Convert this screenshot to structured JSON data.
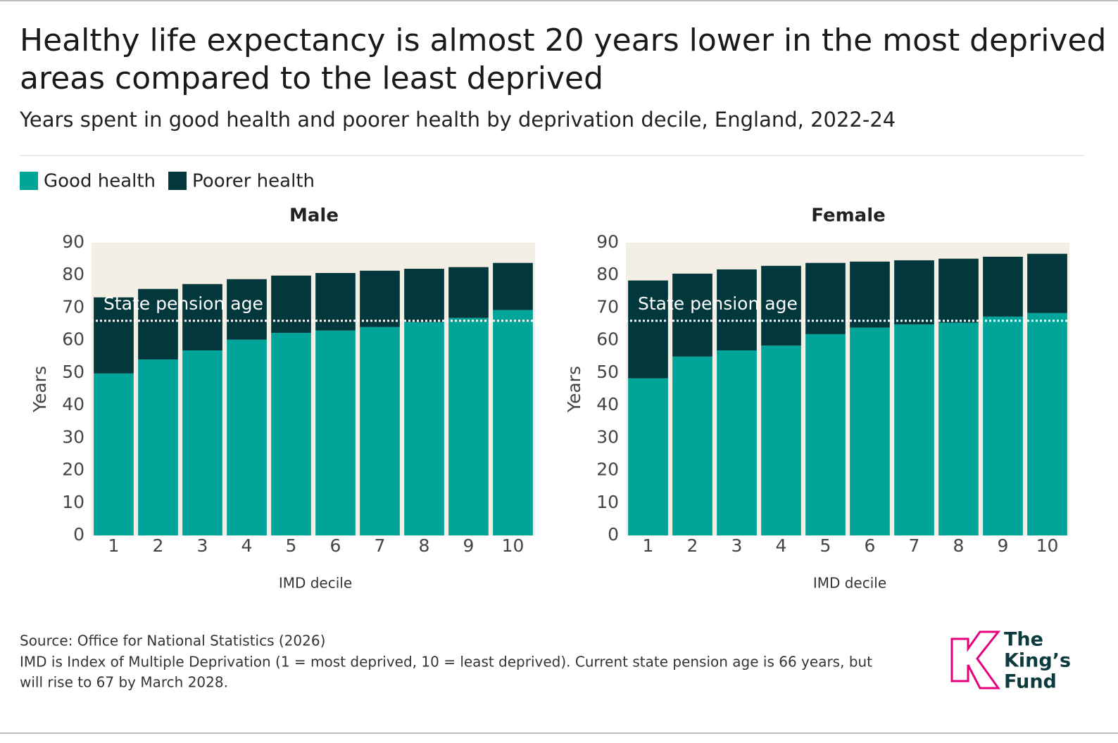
{
  "header": {
    "title_lines": [
      "Healthy life expectancy is almost 20 years lower in the most deprived",
      "areas compared to the least deprived"
    ],
    "subtitle": "Years spent in good health and poorer health by deprivation decile, England, 2022-24"
  },
  "legend": [
    {
      "name": "Good health",
      "color": "#00a499"
    },
    {
      "name": "Poorer health",
      "color": "#02373c"
    }
  ],
  "chart_data": [
    {
      "type": "stacked-bar",
      "title": "Male",
      "x_label": "IMD decile",
      "y_label": "Years",
      "categories": [
        "1",
        "2",
        "3",
        "4",
        "5",
        "6",
        "7",
        "8",
        "9",
        "10"
      ],
      "series": [
        {
          "values": [
            49.8,
            54.1,
            56.9,
            60.2,
            62.3,
            63.0,
            64.1,
            65.6,
            66.9,
            69.3
          ]
        },
        {
          "values": [
            23.4,
            21.7,
            20.4,
            18.6,
            17.6,
            17.7,
            17.3,
            16.4,
            15.6,
            14.5
          ]
        }
      ],
      "ylim": [
        0,
        90
      ],
      "yticks": [
        0,
        10,
        20,
        30,
        40,
        50,
        60,
        70,
        80,
        90
      ],
      "annotations": [
        {
          "text": "State pension age",
          "y": 66
        }
      ]
    },
    {
      "type": "stacked-bar",
      "title": "Female",
      "x_label": "IMD decile",
      "y_label": "Years",
      "categories": [
        "1",
        "2",
        "3",
        "4",
        "5",
        "6",
        "7",
        "8",
        "9",
        "10"
      ],
      "series": [
        {
          "values": [
            48.3,
            55.0,
            56.9,
            58.4,
            61.9,
            63.9,
            64.9,
            65.4,
            67.3,
            68.4
          ]
        },
        {
          "values": [
            30.1,
            25.5,
            24.9,
            24.5,
            21.9,
            20.3,
            19.7,
            19.7,
            18.4,
            18.2
          ]
        }
      ],
      "ylim": [
        0,
        90
      ],
      "yticks": [
        0,
        10,
        20,
        30,
        40,
        50,
        60,
        70,
        80,
        90
      ],
      "annotations": [
        {
          "text": "State pension age",
          "y": 66
        }
      ]
    }
  ],
  "footer": {
    "source": "Source: Office for National Statistics (2026)",
    "note_lines": [
      "IMD is Index of Multiple Deprivation (1 = most deprived, 10 = least deprived). Current state pension age is 66 years, but",
      "will rise to 67 by March 2028."
    ]
  },
  "logo": {
    "lines": [
      "The",
      "King’s",
      "Fund"
    ]
  }
}
